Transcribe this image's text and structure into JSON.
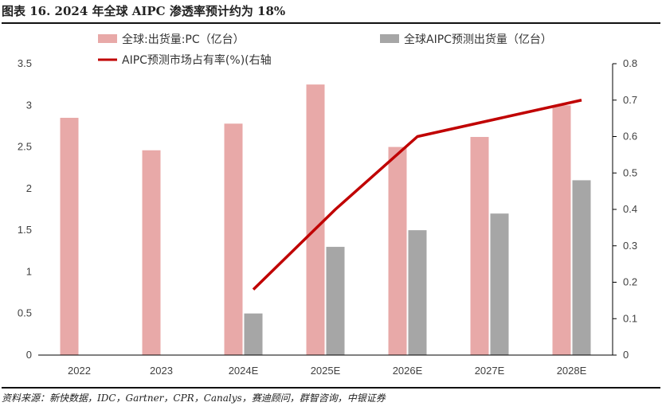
{
  "title": "图表 16. 2024 年全球 AIPC 渗透率预计约为 18%",
  "source": "资料来源：新快数据，IDC，Gartner，CPR，Canalys，赛迪顾问，群智咨询，中银证券",
  "colors": {
    "pc_bar": "#E8A9A8",
    "aipc_bar": "#A6A6A6",
    "share_line": "#C00000",
    "axis": "#000000"
  },
  "chart_data": {
    "type": "bar",
    "categories": [
      "2022",
      "2023",
      "2024E",
      "2025E",
      "2026E",
      "2027E",
      "2028E"
    ],
    "series": [
      {
        "name": "全球:出货量:PC（亿台）",
        "type": "bar",
        "axis": "left",
        "values": [
          2.85,
          2.46,
          2.78,
          3.25,
          2.5,
          2.62,
          3.0
        ]
      },
      {
        "name": "全球AIPC预测出货量（亿台）",
        "type": "bar",
        "axis": "left",
        "values": [
          null,
          null,
          0.5,
          1.3,
          1.5,
          1.7,
          2.1
        ]
      },
      {
        "name": "AIPC预测市场占有率(%)(右轴",
        "type": "line",
        "axis": "right",
        "values": [
          null,
          null,
          0.18,
          0.4,
          0.6,
          0.65,
          0.7
        ]
      }
    ],
    "y_left": {
      "min": 0,
      "max": 3.5,
      "ticks": [
        "0",
        "0.5",
        "1",
        "1.5",
        "2",
        "2.5",
        "3",
        "3.5"
      ]
    },
    "y_right": {
      "min": 0,
      "max": 0.8,
      "ticks": [
        "0",
        "0.1",
        "0.2",
        "0.3",
        "0.4",
        "0.5",
        "0.6",
        "0.7",
        "0.8"
      ]
    },
    "grid": false,
    "legend": "top"
  }
}
